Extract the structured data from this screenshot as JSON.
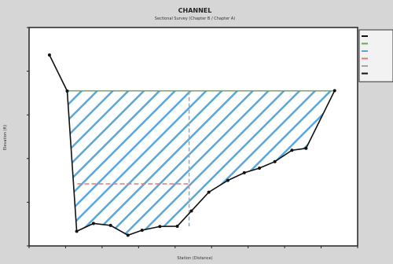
{
  "colors": {
    "page_bg": "#d6d6d6",
    "plot_bg": "#ffffff",
    "border": "#222222",
    "hatch": "#5aa7d8",
    "water_line": "#6fa25a",
    "reference_line": "#e07a7a",
    "vertical_line": "#9aa6b2",
    "ground": "#111111"
  },
  "chart_data": {
    "type": "line",
    "title": "CHANNEL",
    "subtitle": "Sectional Survey (Chapter B / Chapter A)",
    "xlabel": "Station (Distance)",
    "ylabel": "Elevation (ft)",
    "xlim": [
      0,
      100
    ],
    "ylim": [
      0,
      100
    ],
    "grid": false,
    "legend_position": "top-right",
    "legend_entries": [
      "",
      "",
      "",
      "",
      "",
      ""
    ],
    "x_tick_labels": [
      "",
      "",
      "",
      "",
      "",
      "",
      "",
      "",
      "",
      ""
    ],
    "y_tick_labels": [
      "",
      "",
      "",
      "",
      "",
      ""
    ],
    "series": [
      {
        "name": "",
        "type": "ground",
        "points": [
          [
            6.2,
            87.4
          ],
          [
            11.6,
            70.9
          ],
          [
            14.5,
            6.7
          ],
          [
            19.6,
            10.3
          ],
          [
            24.8,
            9.4
          ],
          [
            30.1,
            4.9
          ],
          [
            34.4,
            7.2
          ],
          [
            39.8,
            8.9
          ],
          [
            45.1,
            9.0
          ],
          [
            49.4,
            16.0
          ],
          [
            54.7,
            24.6
          ],
          [
            60.5,
            30.0
          ],
          [
            65.5,
            33.5
          ],
          [
            70.1,
            35.6
          ],
          [
            74.8,
            38.6
          ],
          [
            80.0,
            43.8
          ],
          [
            84.3,
            44.7
          ],
          [
            93.0,
            71.1
          ]
        ]
      },
      {
        "name": "",
        "type": "water_surface",
        "y": 71.0,
        "x_range": [
          11.6,
          92.8
        ]
      },
      {
        "name": "",
        "type": "reference_line",
        "y": 28.4,
        "x_range": [
          14.7,
          49.6
        ]
      },
      {
        "name": "",
        "type": "vertical_marker",
        "x": 48.7,
        "y_range": [
          9.0,
          71.0
        ]
      }
    ]
  }
}
